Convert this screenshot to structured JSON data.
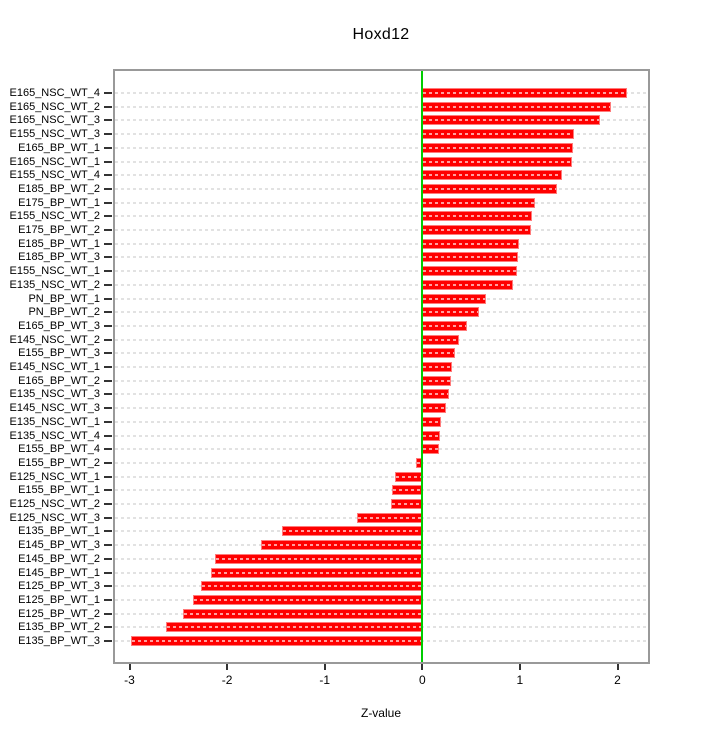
{
  "chart_data": {
    "type": "bar",
    "orientation": "horizontal",
    "title": "Hoxd12",
    "xlabel": "Z-value",
    "ylabel": "",
    "xlim": [
      -3.16,
      2.32
    ],
    "x_ticks": [
      -3,
      -2,
      -1,
      0,
      1,
      2
    ],
    "x_tick_labels": [
      "-3",
      "-2",
      "-1",
      "0",
      "1",
      "2"
    ],
    "grid": "dotted-horizontal",
    "zero_reference_line": 0,
    "categories": [
      "E165_NSC_WT_4",
      "E165_NSC_WT_2",
      "E165_NSC_WT_3",
      "E155_NSC_WT_3",
      "E165_BP_WT_1",
      "E165_NSC_WT_1",
      "E155_NSC_WT_4",
      "E185_BP_WT_2",
      "E175_BP_WT_1",
      "E155_NSC_WT_2",
      "E175_BP_WT_2",
      "E185_BP_WT_1",
      "E185_BP_WT_3",
      "E155_NSC_WT_1",
      "E135_NSC_WT_2",
      "PN_BP_WT_1",
      "PN_BP_WT_2",
      "E165_BP_WT_3",
      "E145_NSC_WT_2",
      "E155_BP_WT_3",
      "E145_NSC_WT_1",
      "E165_BP_WT_2",
      "E135_NSC_WT_3",
      "E145_NSC_WT_3",
      "E135_NSC_WT_1",
      "E135_NSC_WT_4",
      "E155_BP_WT_4",
      "E155_BP_WT_2",
      "E125_NSC_WT_1",
      "E155_BP_WT_1",
      "E125_NSC_WT_2",
      "E125_NSC_WT_3",
      "E135_BP_WT_1",
      "E145_BP_WT_3",
      "E145_BP_WT_2",
      "E145_BP_WT_1",
      "E125_BP_WT_3",
      "E125_BP_WT_1",
      "E125_BP_WT_2",
      "E135_BP_WT_2",
      "E135_BP_WT_3"
    ],
    "values": [
      2.1,
      1.93,
      1.82,
      1.55,
      1.54,
      1.53,
      1.43,
      1.38,
      1.15,
      1.12,
      1.11,
      0.99,
      0.98,
      0.97,
      0.93,
      0.65,
      0.58,
      0.46,
      0.38,
      0.33,
      0.3,
      0.29,
      0.27,
      0.24,
      0.19,
      0.18,
      0.17,
      -0.06,
      -0.28,
      -0.31,
      -0.32,
      -0.67,
      -1.44,
      -1.65,
      -2.12,
      -2.17,
      -2.27,
      -2.35,
      -2.45,
      -2.63,
      -2.98
    ],
    "colors": {
      "bar": "#ff0000",
      "bar_grid_overlay": "#ff9f9f",
      "zero_line": "#00cc00",
      "gridline": "#e2e2e2",
      "box_border": "#999999",
      "tick": "#333333",
      "text": "#000000",
      "background": "#ffffff"
    }
  }
}
